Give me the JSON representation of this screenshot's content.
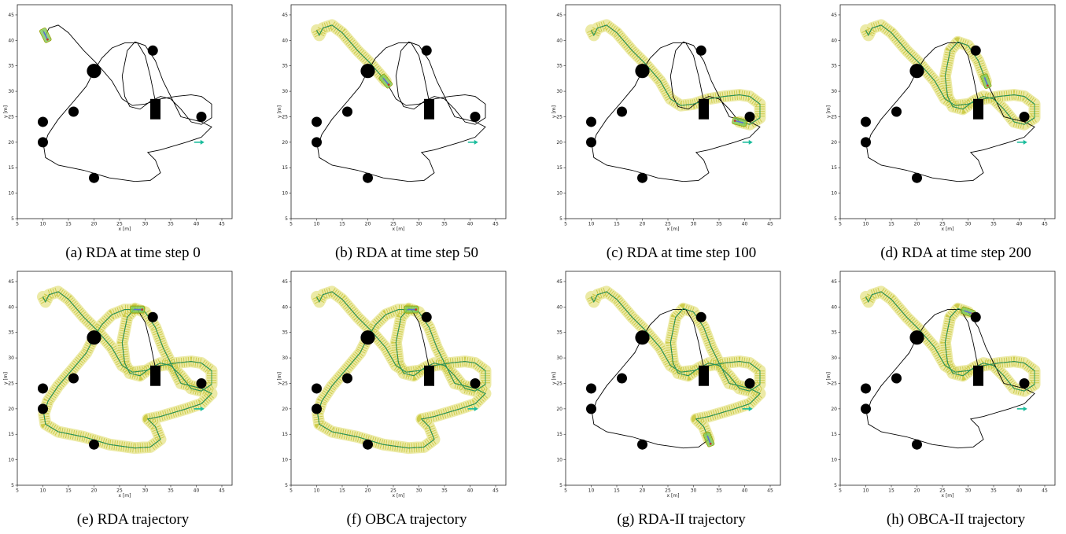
{
  "chart_data": [
    {
      "type": "scatter",
      "caption": "(a) RDA at time step 0",
      "xlabel": "x [m]",
      "ylabel": "y [m]",
      "xlim": [
        5,
        47
      ],
      "ylim": [
        5,
        47
      ],
      "xticks": [
        5,
        10,
        15,
        20,
        25,
        30,
        35,
        40,
        45
      ],
      "yticks": [
        5,
        10,
        15,
        20,
        25,
        30,
        35,
        40,
        45
      ],
      "obstacles": {
        "circles": [
          {
            "x": 10,
            "y": 24,
            "r": 1
          },
          {
            "x": 10,
            "y": 20,
            "r": 1
          },
          {
            "x": 16,
            "y": 26,
            "r": 1
          },
          {
            "x": 20,
            "y": 34,
            "r": 1.4
          },
          {
            "x": 20,
            "y": 13,
            "r": 1
          },
          {
            "x": 31.5,
            "y": 38,
            "r": 1
          },
          {
            "x": 41,
            "y": 25,
            "r": 1
          }
        ],
        "rect": {
          "x": 31,
          "y": 24.5,
          "w": 2,
          "h": 4
        }
      },
      "goal": {
        "x": 40.5,
        "y": 20
      },
      "progress": 0
    },
    {
      "type": "scatter",
      "caption": "(b) RDA at time step 50",
      "xlabel": "x [m]",
      "ylabel": "y [m]",
      "xlim": [
        5,
        47
      ],
      "ylim": [
        5,
        47
      ],
      "xticks": [
        5,
        10,
        15,
        20,
        25,
        30,
        35,
        40,
        45
      ],
      "yticks": [
        5,
        10,
        15,
        20,
        25,
        30,
        35,
        40,
        45
      ],
      "obstacles": {
        "circles": [
          {
            "x": 10,
            "y": 24,
            "r": 1
          },
          {
            "x": 10,
            "y": 20,
            "r": 1
          },
          {
            "x": 16,
            "y": 26,
            "r": 1
          },
          {
            "x": 20,
            "y": 34,
            "r": 1.4
          },
          {
            "x": 20,
            "y": 13,
            "r": 1
          },
          {
            "x": 31.5,
            "y": 38,
            "r": 1
          },
          {
            "x": 41,
            "y": 25,
            "r": 1
          }
        ],
        "rect": {
          "x": 31,
          "y": 24.5,
          "w": 2,
          "h": 4
        }
      },
      "goal": {
        "x": 40.5,
        "y": 20
      },
      "progress": 0.12
    },
    {
      "type": "scatter",
      "caption": "(c) RDA at time step 100",
      "xlabel": "x [m]",
      "ylabel": "y [m]",
      "xlim": [
        5,
        47
      ],
      "ylim": [
        5,
        47
      ],
      "xticks": [
        5,
        10,
        15,
        20,
        25,
        30,
        35,
        40,
        45
      ],
      "yticks": [
        5,
        10,
        15,
        20,
        25,
        30,
        35,
        40,
        45
      ],
      "obstacles": {
        "circles": [
          {
            "x": 10,
            "y": 24,
            "r": 1
          },
          {
            "x": 10,
            "y": 20,
            "r": 1
          },
          {
            "x": 16,
            "y": 26,
            "r": 1
          },
          {
            "x": 20,
            "y": 34,
            "r": 1.4
          },
          {
            "x": 20,
            "y": 13,
            "r": 1
          },
          {
            "x": 31.5,
            "y": 38,
            "r": 1
          },
          {
            "x": 41,
            "y": 25,
            "r": 1
          }
        ],
        "rect": {
          "x": 31,
          "y": 24.5,
          "w": 2,
          "h": 4
        }
      },
      "goal": {
        "x": 40.5,
        "y": 20
      },
      "progress": 0.29
    },
    {
      "type": "scatter",
      "caption": "(d) RDA at time step 200",
      "xlabel": "x [m]",
      "ylabel": "y [m]",
      "xlim": [
        5,
        47
      ],
      "ylim": [
        5,
        47
      ],
      "xticks": [
        5,
        10,
        15,
        20,
        25,
        30,
        35,
        40,
        45
      ],
      "yticks": [
        5,
        10,
        15,
        20,
        25,
        30,
        35,
        40,
        45
      ],
      "obstacles": {
        "circles": [
          {
            "x": 10,
            "y": 24,
            "r": 1
          },
          {
            "x": 10,
            "y": 20,
            "r": 1
          },
          {
            "x": 16,
            "y": 26,
            "r": 1
          },
          {
            "x": 20,
            "y": 34,
            "r": 1.4
          },
          {
            "x": 20,
            "y": 13,
            "r": 1
          },
          {
            "x": 31.5,
            "y": 38,
            "r": 1
          },
          {
            "x": 41,
            "y": 25,
            "r": 1
          }
        ],
        "rect": {
          "x": 31,
          "y": 24.5,
          "w": 2,
          "h": 4
        }
      },
      "goal": {
        "x": 40.5,
        "y": 20
      },
      "progress": 0.5
    },
    {
      "type": "scatter",
      "caption": "(e) RDA trajectory",
      "xlabel": "x [m]",
      "ylabel": "y [m]",
      "xlim": [
        5,
        47
      ],
      "ylim": [
        5,
        47
      ],
      "xticks": [
        5,
        10,
        15,
        20,
        25,
        30,
        35,
        40,
        45
      ],
      "yticks": [
        5,
        10,
        15,
        20,
        25,
        30,
        35,
        40,
        45
      ],
      "obstacles": {
        "circles": [
          {
            "x": 10,
            "y": 24,
            "r": 1
          },
          {
            "x": 10,
            "y": 20,
            "r": 1
          },
          {
            "x": 16,
            "y": 26,
            "r": 1
          },
          {
            "x": 20,
            "y": 34,
            "r": 1.4
          },
          {
            "x": 20,
            "y": 13,
            "r": 1
          },
          {
            "x": 31.5,
            "y": 38,
            "r": 1
          },
          {
            "x": 41,
            "y": 25,
            "r": 1
          }
        ],
        "rect": {
          "x": 31,
          "y": 24.5,
          "w": 2,
          "h": 4
        }
      },
      "goal": {
        "x": 40.5,
        "y": 20
      },
      "progress": 0.93
    },
    {
      "type": "scatter",
      "caption": "(f) OBCA trajectory",
      "xlabel": "x [m]",
      "ylabel": "y [m]",
      "xlim": [
        5,
        47
      ],
      "ylim": [
        5,
        47
      ],
      "xticks": [
        5,
        10,
        15,
        20,
        25,
        30,
        35,
        40,
        45
      ],
      "yticks": [
        5,
        10,
        15,
        20,
        25,
        30,
        35,
        40,
        45
      ],
      "obstacles": {
        "circles": [
          {
            "x": 10,
            "y": 24,
            "r": 1
          },
          {
            "x": 10,
            "y": 20,
            "r": 1
          },
          {
            "x": 16,
            "y": 26,
            "r": 1
          },
          {
            "x": 20,
            "y": 34,
            "r": 1.4
          },
          {
            "x": 20,
            "y": 13,
            "r": 1
          },
          {
            "x": 31.5,
            "y": 38,
            "r": 1
          },
          {
            "x": 41,
            "y": 25,
            "r": 1
          }
        ],
        "rect": {
          "x": 31,
          "y": 24.5,
          "w": 2,
          "h": 4
        }
      },
      "goal": {
        "x": 40.5,
        "y": 20
      },
      "progress": 0.93
    },
    {
      "type": "scatter",
      "caption": "(g) RDA-II trajectory",
      "xlabel": "x [m]",
      "ylabel": "y [m]",
      "xlim": [
        5,
        47
      ],
      "ylim": [
        5,
        47
      ],
      "xticks": [
        5,
        10,
        15,
        20,
        25,
        30,
        35,
        40,
        45
      ],
      "yticks": [
        5,
        10,
        15,
        20,
        25,
        30,
        35,
        40,
        45
      ],
      "obstacles": {
        "circles": [
          {
            "x": 10,
            "y": 24,
            "r": 1
          },
          {
            "x": 10,
            "y": 20,
            "r": 1
          },
          {
            "x": 16,
            "y": 26,
            "r": 1
          },
          {
            "x": 20,
            "y": 34,
            "r": 1.4
          },
          {
            "x": 20,
            "y": 13,
            "r": 1
          },
          {
            "x": 31.5,
            "y": 38,
            "r": 1
          },
          {
            "x": 41,
            "y": 25,
            "r": 1
          }
        ],
        "rect": {
          "x": 31,
          "y": 24.5,
          "w": 2,
          "h": 4
        }
      },
      "goal": {
        "x": 40.5,
        "y": 20
      },
      "progress": 0.68
    },
    {
      "type": "scatter",
      "caption": "(h) OBCA-II trajectory",
      "xlabel": "x [m]",
      "ylabel": "y [m]",
      "xlim": [
        5,
        47
      ],
      "ylim": [
        5,
        47
      ],
      "xticks": [
        5,
        10,
        15,
        20,
        25,
        30,
        35,
        40,
        45
      ],
      "yticks": [
        5,
        10,
        15,
        20,
        25,
        30,
        35,
        40,
        45
      ],
      "obstacles": {
        "circles": [
          {
            "x": 10,
            "y": 24,
            "r": 1
          },
          {
            "x": 10,
            "y": 20,
            "r": 1
          },
          {
            "x": 16,
            "y": 26,
            "r": 1
          },
          {
            "x": 20,
            "y": 34,
            "r": 1.4
          },
          {
            "x": 20,
            "y": 13,
            "r": 1
          },
          {
            "x": 31.5,
            "y": 38,
            "r": 1
          },
          {
            "x": 41,
            "y": 25,
            "r": 1
          }
        ],
        "rect": {
          "x": 31,
          "y": 24.5,
          "w": 2,
          "h": 4
        }
      },
      "goal": {
        "x": 40.5,
        "y": 20
      },
      "progress": 0.47
    }
  ],
  "reference_path": [
    [
      10,
      42
    ],
    [
      10.5,
      41
    ],
    [
      11.2,
      42.4
    ],
    [
      13,
      43
    ],
    [
      15,
      41.5
    ],
    [
      18,
      38
    ],
    [
      20.5,
      35.5
    ],
    [
      23.5,
      32
    ],
    [
      25.5,
      28.5
    ],
    [
      27.5,
      27.2
    ],
    [
      30,
      27.5
    ],
    [
      33,
      28.5
    ],
    [
      36,
      29
    ],
    [
      39,
      29.3
    ],
    [
      41,
      29
    ],
    [
      43,
      27.5
    ],
    [
      43,
      24.8
    ],
    [
      41,
      23.5
    ],
    [
      39,
      24
    ],
    [
      37,
      26.5
    ],
    [
      35,
      28.5
    ],
    [
      33,
      29
    ],
    [
      31,
      28
    ],
    [
      29,
      26.5
    ],
    [
      27,
      27
    ],
    [
      26,
      29
    ],
    [
      25.5,
      33
    ],
    [
      26.5,
      38
    ],
    [
      28,
      39.7
    ],
    [
      30,
      39
    ],
    [
      32,
      36
    ],
    [
      33.5,
      32
    ],
    [
      35.5,
      28
    ],
    [
      37,
      25
    ],
    [
      39,
      24.5
    ],
    [
      41,
      24
    ],
    [
      43,
      23
    ],
    [
      41,
      21
    ],
    [
      38,
      20
    ],
    [
      33,
      18.5
    ],
    [
      30.5,
      18
    ],
    [
      32,
      16.5
    ],
    [
      33,
      14
    ],
    [
      31,
      12.5
    ],
    [
      28,
      12.3
    ],
    [
      23,
      13
    ],
    [
      18,
      14.5
    ],
    [
      13,
      15.5
    ],
    [
      10.5,
      17
    ],
    [
      10.2,
      19
    ],
    [
      11,
      21.5
    ],
    [
      13,
      24.5
    ],
    [
      16,
      28
    ],
    [
      18.5,
      31
    ],
    [
      20,
      34
    ],
    [
      21.5,
      36.5
    ],
    [
      23.5,
      38.5
    ],
    [
      26,
      39.5
    ],
    [
      28.5,
      39.5
    ],
    [
      30,
      37
    ],
    [
      31,
      33
    ],
    [
      32,
      28
    ],
    [
      32.5,
      25.5
    ]
  ]
}
